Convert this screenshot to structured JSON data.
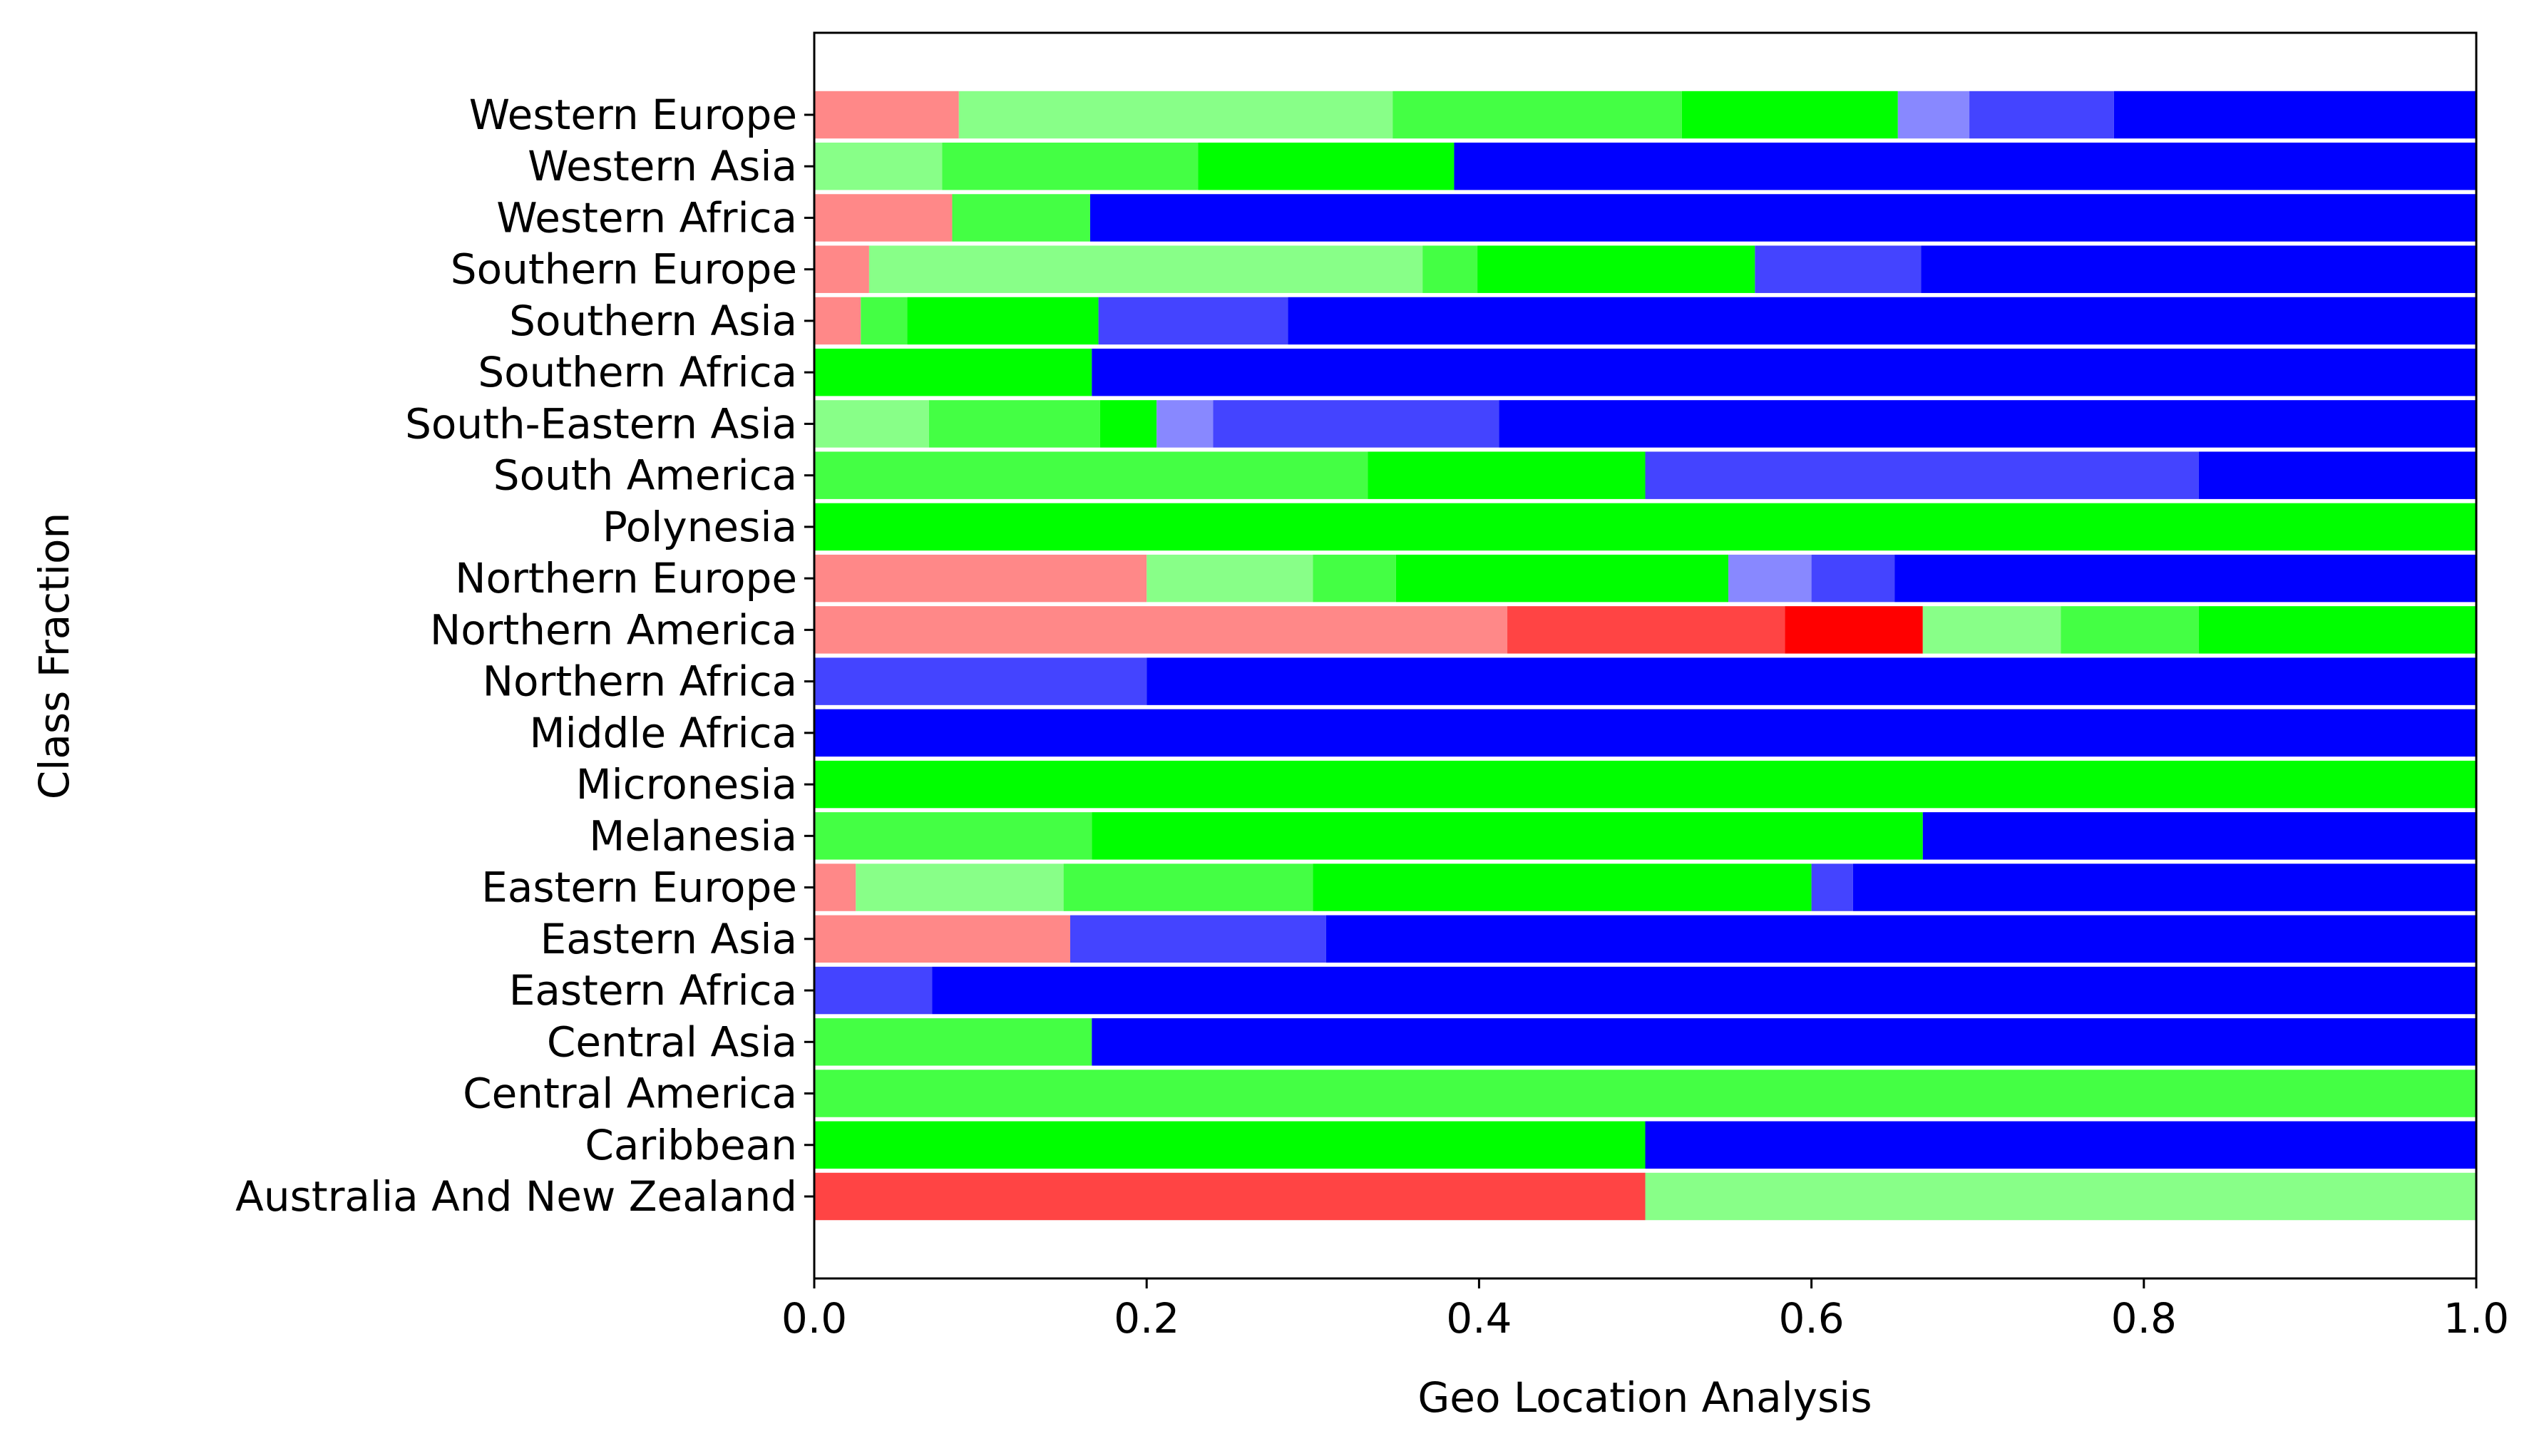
{
  "chart_data": {
    "type": "bar",
    "orientation": "horizontal",
    "stacked": true,
    "xlabel": "Geo Location Analysis",
    "ylabel": "Class Fraction",
    "xlim": [
      0,
      1
    ],
    "xticks": [
      "0.0",
      "0.2",
      "0.4",
      "0.6",
      "0.8",
      "1.0"
    ],
    "grid": false,
    "legend": "none",
    "series_colors": [
      "#ff8888",
      "#ff4444",
      "#ff0000",
      "#88ff88",
      "#44ff44",
      "#00ff00",
      "#8888ff",
      "#4444ff",
      "#0000ff"
    ],
    "categories": [
      "Australia And New Zealand",
      "Caribbean",
      "Central America",
      "Central Asia",
      "Eastern Africa",
      "Eastern Asia",
      "Eastern Europe",
      "Melanesia",
      "Micronesia",
      "Middle Africa",
      "Northern Africa",
      "Northern America",
      "Northern Europe",
      "Polynesia",
      "South America",
      "South-Eastern Asia",
      "Southern Africa",
      "Southern Asia",
      "Southern Europe",
      "Western Africa",
      "Western Asia",
      "Western Europe"
    ],
    "series": [
      {
        "color": "#ff8888",
        "values": [
          0,
          0,
          0,
          0,
          0,
          0.154,
          0.025,
          0,
          0,
          0,
          0,
          0.417,
          0.2,
          0,
          0,
          0,
          0,
          0.028,
          0.033,
          0.083,
          0,
          0.087
        ]
      },
      {
        "color": "#ff4444",
        "values": [
          0.5,
          0,
          0,
          0,
          0,
          0,
          0,
          0,
          0,
          0,
          0,
          0.167,
          0,
          0,
          0,
          0,
          0,
          0,
          0,
          0,
          0,
          0
        ]
      },
      {
        "color": "#ff0000",
        "values": [
          0,
          0,
          0,
          0,
          0,
          0,
          0,
          0,
          0,
          0,
          0,
          0.083,
          0,
          0,
          0,
          0,
          0,
          0,
          0,
          0,
          0,
          0
        ]
      },
      {
        "color": "#88ff88",
        "values": [
          0.5,
          0,
          0,
          0,
          0,
          0,
          0.125,
          0,
          0,
          0,
          0,
          0.083,
          0.1,
          0,
          0,
          0.069,
          0,
          0,
          0.333,
          0,
          0.077,
          0.261
        ]
      },
      {
        "color": "#44ff44",
        "values": [
          0,
          0,
          1.0,
          0.167,
          0,
          0,
          0.15,
          0.167,
          0,
          0,
          0,
          0.083,
          0.05,
          0,
          0.333,
          0.103,
          0,
          0.028,
          0.033,
          0.083,
          0.154,
          0.174
        ]
      },
      {
        "color": "#00ff00",
        "values": [
          0,
          0.5,
          0,
          0,
          0,
          0,
          0.3,
          0.5,
          1.0,
          0,
          0,
          0.167,
          0.2,
          1.0,
          0.167,
          0.034,
          0.167,
          0.115,
          0.167,
          0,
          0.154,
          0.13
        ]
      },
      {
        "color": "#8888ff",
        "values": [
          0,
          0,
          0,
          0,
          0,
          0,
          0,
          0,
          0,
          0,
          0,
          0,
          0.05,
          0,
          0,
          0.034,
          0,
          0,
          0,
          0,
          0,
          0.043
        ]
      },
      {
        "color": "#4444ff",
        "values": [
          0,
          0,
          0,
          0,
          0.071,
          0.154,
          0.025,
          0,
          0,
          0,
          0.2,
          0,
          0.05,
          0,
          0.333,
          0.172,
          0,
          0.114,
          0.1,
          0,
          0,
          0.087
        ]
      },
      {
        "color": "#0000ff",
        "values": [
          0,
          0.5,
          0,
          0.833,
          0.929,
          0.692,
          0.375,
          0.333,
          0,
          1.0,
          0.8,
          0,
          0.35,
          0,
          0.167,
          0.588,
          0.833,
          0.715,
          0.334,
          0.834,
          0.615,
          0.218
        ]
      }
    ]
  }
}
